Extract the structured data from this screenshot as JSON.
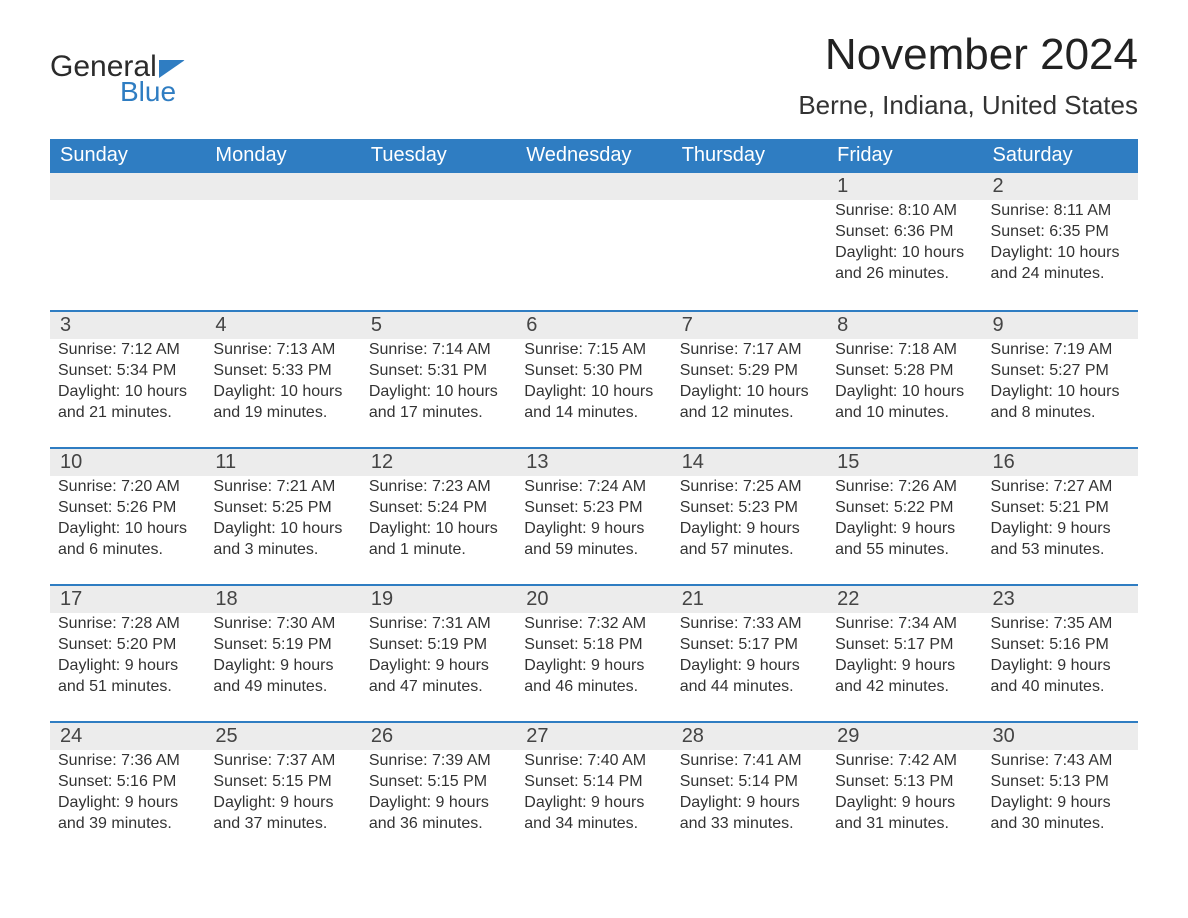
{
  "logo": {
    "general": "General",
    "blue": "Blue"
  },
  "title": "November 2024",
  "location": "Berne, Indiana, United States",
  "days_of_week": [
    "Sunday",
    "Monday",
    "Tuesday",
    "Wednesday",
    "Thursday",
    "Friday",
    "Saturday"
  ],
  "colors": {
    "brand_blue": "#2f7dc2",
    "band_bg": "#ececec",
    "text": "#333333",
    "white": "#ffffff"
  },
  "typography": {
    "title_fontsize": 44,
    "location_fontsize": 26,
    "dow_fontsize": 20,
    "daynum_fontsize": 20,
    "body_fontsize": 16
  },
  "weeks": [
    [
      {
        "empty": true
      },
      {
        "empty": true
      },
      {
        "empty": true
      },
      {
        "empty": true
      },
      {
        "empty": true
      },
      {
        "num": "1",
        "sunrise": "Sunrise: 8:10 AM",
        "sunset": "Sunset: 6:36 PM",
        "daylight1": "Daylight: 10 hours",
        "daylight2": "and 26 minutes."
      },
      {
        "num": "2",
        "sunrise": "Sunrise: 8:11 AM",
        "sunset": "Sunset: 6:35 PM",
        "daylight1": "Daylight: 10 hours",
        "daylight2": "and 24 minutes."
      }
    ],
    [
      {
        "num": "3",
        "sunrise": "Sunrise: 7:12 AM",
        "sunset": "Sunset: 5:34 PM",
        "daylight1": "Daylight: 10 hours",
        "daylight2": "and 21 minutes."
      },
      {
        "num": "4",
        "sunrise": "Sunrise: 7:13 AM",
        "sunset": "Sunset: 5:33 PM",
        "daylight1": "Daylight: 10 hours",
        "daylight2": "and 19 minutes."
      },
      {
        "num": "5",
        "sunrise": "Sunrise: 7:14 AM",
        "sunset": "Sunset: 5:31 PM",
        "daylight1": "Daylight: 10 hours",
        "daylight2": "and 17 minutes."
      },
      {
        "num": "6",
        "sunrise": "Sunrise: 7:15 AM",
        "sunset": "Sunset: 5:30 PM",
        "daylight1": "Daylight: 10 hours",
        "daylight2": "and 14 minutes."
      },
      {
        "num": "7",
        "sunrise": "Sunrise: 7:17 AM",
        "sunset": "Sunset: 5:29 PM",
        "daylight1": "Daylight: 10 hours",
        "daylight2": "and 12 minutes."
      },
      {
        "num": "8",
        "sunrise": "Sunrise: 7:18 AM",
        "sunset": "Sunset: 5:28 PM",
        "daylight1": "Daylight: 10 hours",
        "daylight2": "and 10 minutes."
      },
      {
        "num": "9",
        "sunrise": "Sunrise: 7:19 AM",
        "sunset": "Sunset: 5:27 PM",
        "daylight1": "Daylight: 10 hours",
        "daylight2": "and 8 minutes."
      }
    ],
    [
      {
        "num": "10",
        "sunrise": "Sunrise: 7:20 AM",
        "sunset": "Sunset: 5:26 PM",
        "daylight1": "Daylight: 10 hours",
        "daylight2": "and 6 minutes."
      },
      {
        "num": "11",
        "sunrise": "Sunrise: 7:21 AM",
        "sunset": "Sunset: 5:25 PM",
        "daylight1": "Daylight: 10 hours",
        "daylight2": "and 3 minutes."
      },
      {
        "num": "12",
        "sunrise": "Sunrise: 7:23 AM",
        "sunset": "Sunset: 5:24 PM",
        "daylight1": "Daylight: 10 hours",
        "daylight2": "and 1 minute."
      },
      {
        "num": "13",
        "sunrise": "Sunrise: 7:24 AM",
        "sunset": "Sunset: 5:23 PM",
        "daylight1": "Daylight: 9 hours",
        "daylight2": "and 59 minutes."
      },
      {
        "num": "14",
        "sunrise": "Sunrise: 7:25 AM",
        "sunset": "Sunset: 5:23 PM",
        "daylight1": "Daylight: 9 hours",
        "daylight2": "and 57 minutes."
      },
      {
        "num": "15",
        "sunrise": "Sunrise: 7:26 AM",
        "sunset": "Sunset: 5:22 PM",
        "daylight1": "Daylight: 9 hours",
        "daylight2": "and 55 minutes."
      },
      {
        "num": "16",
        "sunrise": "Sunrise: 7:27 AM",
        "sunset": "Sunset: 5:21 PM",
        "daylight1": "Daylight: 9 hours",
        "daylight2": "and 53 minutes."
      }
    ],
    [
      {
        "num": "17",
        "sunrise": "Sunrise: 7:28 AM",
        "sunset": "Sunset: 5:20 PM",
        "daylight1": "Daylight: 9 hours",
        "daylight2": "and 51 minutes."
      },
      {
        "num": "18",
        "sunrise": "Sunrise: 7:30 AM",
        "sunset": "Sunset: 5:19 PM",
        "daylight1": "Daylight: 9 hours",
        "daylight2": "and 49 minutes."
      },
      {
        "num": "19",
        "sunrise": "Sunrise: 7:31 AM",
        "sunset": "Sunset: 5:19 PM",
        "daylight1": "Daylight: 9 hours",
        "daylight2": "and 47 minutes."
      },
      {
        "num": "20",
        "sunrise": "Sunrise: 7:32 AM",
        "sunset": "Sunset: 5:18 PM",
        "daylight1": "Daylight: 9 hours",
        "daylight2": "and 46 minutes."
      },
      {
        "num": "21",
        "sunrise": "Sunrise: 7:33 AM",
        "sunset": "Sunset: 5:17 PM",
        "daylight1": "Daylight: 9 hours",
        "daylight2": "and 44 minutes."
      },
      {
        "num": "22",
        "sunrise": "Sunrise: 7:34 AM",
        "sunset": "Sunset: 5:17 PM",
        "daylight1": "Daylight: 9 hours",
        "daylight2": "and 42 minutes."
      },
      {
        "num": "23",
        "sunrise": "Sunrise: 7:35 AM",
        "sunset": "Sunset: 5:16 PM",
        "daylight1": "Daylight: 9 hours",
        "daylight2": "and 40 minutes."
      }
    ],
    [
      {
        "num": "24",
        "sunrise": "Sunrise: 7:36 AM",
        "sunset": "Sunset: 5:16 PM",
        "daylight1": "Daylight: 9 hours",
        "daylight2": "and 39 minutes."
      },
      {
        "num": "25",
        "sunrise": "Sunrise: 7:37 AM",
        "sunset": "Sunset: 5:15 PM",
        "daylight1": "Daylight: 9 hours",
        "daylight2": "and 37 minutes."
      },
      {
        "num": "26",
        "sunrise": "Sunrise: 7:39 AM",
        "sunset": "Sunset: 5:15 PM",
        "daylight1": "Daylight: 9 hours",
        "daylight2": "and 36 minutes."
      },
      {
        "num": "27",
        "sunrise": "Sunrise: 7:40 AM",
        "sunset": "Sunset: 5:14 PM",
        "daylight1": "Daylight: 9 hours",
        "daylight2": "and 34 minutes."
      },
      {
        "num": "28",
        "sunrise": "Sunrise: 7:41 AM",
        "sunset": "Sunset: 5:14 PM",
        "daylight1": "Daylight: 9 hours",
        "daylight2": "and 33 minutes."
      },
      {
        "num": "29",
        "sunrise": "Sunrise: 7:42 AM",
        "sunset": "Sunset: 5:13 PM",
        "daylight1": "Daylight: 9 hours",
        "daylight2": "and 31 minutes."
      },
      {
        "num": "30",
        "sunrise": "Sunrise: 7:43 AM",
        "sunset": "Sunset: 5:13 PM",
        "daylight1": "Daylight: 9 hours",
        "daylight2": "and 30 minutes."
      }
    ]
  ]
}
